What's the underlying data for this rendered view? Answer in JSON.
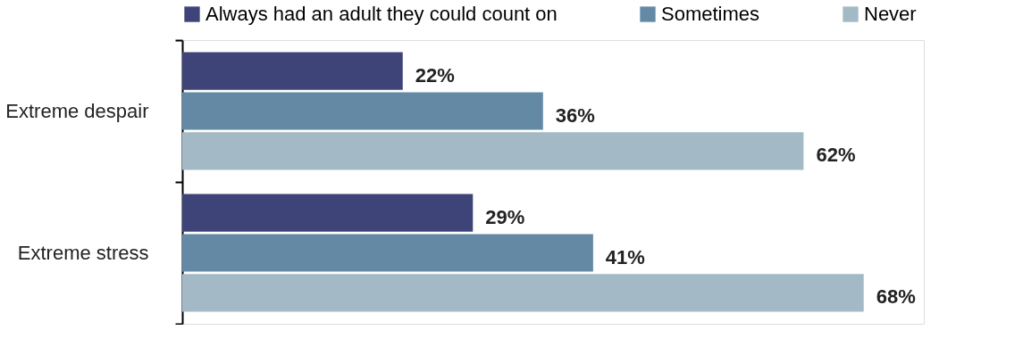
{
  "chart_data": {
    "type": "bar",
    "orientation": "horizontal",
    "categories": [
      "Extreme despair",
      "Extreme stress"
    ],
    "series": [
      {
        "name": "Always had an adult they could count on",
        "color": "#3f4478",
        "values": [
          22,
          29
        ],
        "value_labels": [
          "22%",
          "29%"
        ]
      },
      {
        "name": "Sometimes",
        "color": "#6389a5",
        "values": [
          36,
          41
        ],
        "value_labels": [
          "36%",
          "41%"
        ]
      },
      {
        "name": "Never",
        "color": "#a3b9c6",
        "values": [
          62,
          68
        ],
        "value_labels": [
          "62%",
          "68%"
        ]
      }
    ],
    "xlim": [
      0,
      74
    ],
    "tick_labels": "y",
    "legend": "top",
    "grid": false
  }
}
